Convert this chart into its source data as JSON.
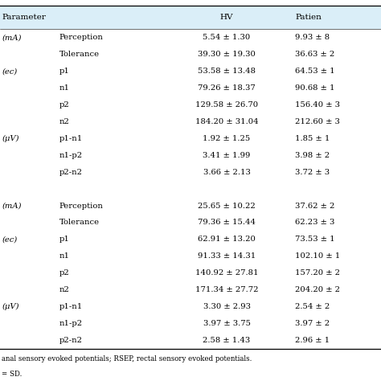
{
  "header_bg": "#daeef8",
  "header_text_color": "#000000",
  "body_bg": "#ffffff",
  "rows": [
    {
      "col0": "(mA)",
      "col1": "Perception",
      "col2": "5.54 ± 1.30",
      "col3": "9.93 ± 8"
    },
    {
      "col0": "",
      "col1": "Tolerance",
      "col2": "39.30 ± 19.30",
      "col3": "36.63 ± 2"
    },
    {
      "col0": "(ec)",
      "col1": "p1",
      "col2": "53.58 ± 13.48",
      "col3": "64.53 ± 1"
    },
    {
      "col0": "",
      "col1": "n1",
      "col2": "79.26 ± 18.37",
      "col3": "90.68 ± 1"
    },
    {
      "col0": "",
      "col1": "p2",
      "col2": "129.58 ± 26.70",
      "col3": "156.40 ± 3"
    },
    {
      "col0": "",
      "col1": "n2",
      "col2": "184.20 ± 31.04",
      "col3": "212.60 ± 3"
    },
    {
      "col0": "(μV)",
      "col1": "p1-n1",
      "col2": "1.92 ± 1.25",
      "col3": "1.85 ± 1"
    },
    {
      "col0": "",
      "col1": "n1-p2",
      "col2": "3.41 ± 1.99",
      "col3": "3.98 ± 2"
    },
    {
      "col0": "",
      "col1": "p2-n2",
      "col2": "3.66 ± 2.13",
      "col3": "3.72 ± 3"
    },
    {
      "col0": "",
      "col1": "",
      "col2": "",
      "col3": ""
    },
    {
      "col0": "(mA)",
      "col1": "Perception",
      "col2": "25.65 ± 10.22",
      "col3": "37.62 ± 2"
    },
    {
      "col0": "",
      "col1": "Tolerance",
      "col2": "79.36 ± 15.44",
      "col3": "62.23 ± 3"
    },
    {
      "col0": "(ec)",
      "col1": "p1",
      "col2": "62.91 ± 13.20",
      "col3": "73.53 ± 1"
    },
    {
      "col0": "",
      "col1": "n1",
      "col2": "91.33 ± 14.31",
      "col3": "102.10 ± 1"
    },
    {
      "col0": "",
      "col1": "p2",
      "col2": "140.92 ± 27.81",
      "col3": "157.20 ± 2"
    },
    {
      "col0": "",
      "col1": "n2",
      "col2": "171.34 ± 27.72",
      "col3": "204.20 ± 2"
    },
    {
      "col0": "(μV)",
      "col1": "p1-n1",
      "col2": "3.30 ± 2.93",
      "col3": "2.54 ± 2"
    },
    {
      "col0": "",
      "col1": "n1-p2",
      "col2": "3.97 ± 3.75",
      "col3": "3.97 ± 2"
    },
    {
      "col0": "",
      "col1": "p2-n2",
      "col2": "2.58 ± 1.43",
      "col3": "2.96 ± 1"
    }
  ],
  "footnote1": "anal sensory evoked potentials; RSEP, rectal sensory evoked potentials.",
  "footnote2": "= SD.",
  "fig_width": 4.74,
  "fig_height": 4.74,
  "dpi": 100
}
